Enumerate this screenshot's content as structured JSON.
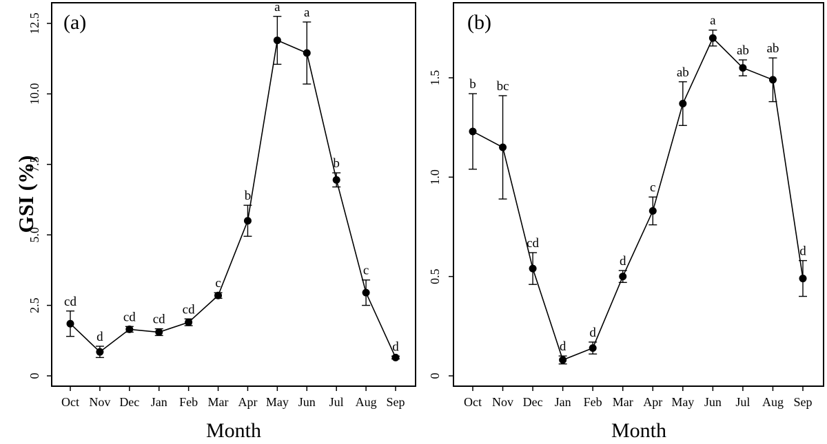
{
  "chart_data": [
    {
      "type": "line",
      "panel_label": "(a)",
      "xlabel": "Month",
      "ylabel": "GSI (%)",
      "categories": [
        "Oct",
        "Nov",
        "Dec",
        "Jan",
        "Feb",
        "Mar",
        "Apr",
        "May",
        "Jun",
        "Jul",
        "Aug",
        "Sep"
      ],
      "values": [
        1.85,
        0.85,
        1.65,
        1.55,
        1.9,
        2.85,
        5.5,
        11.9,
        11.45,
        6.95,
        2.95,
        0.65
      ],
      "error": [
        0.45,
        0.2,
        0.1,
        0.12,
        0.12,
        0.1,
        0.55,
        0.85,
        1.1,
        0.25,
        0.45,
        0.05
      ],
      "significance": [
        "cd",
        "d",
        "cd",
        "cd",
        "cd",
        "c",
        "b",
        "a",
        "a",
        "b",
        "c",
        "d"
      ],
      "ylim": [
        0,
        12.5
      ],
      "yticks": [
        "0",
        "2.5",
        "5.0",
        "7.5",
        "10.0",
        "12.5"
      ],
      "grid": false
    },
    {
      "type": "line",
      "panel_label": "(b)",
      "xlabel": "Month",
      "ylabel": "",
      "categories": [
        "Oct",
        "Nov",
        "Dec",
        "Jan",
        "Feb",
        "Mar",
        "Apr",
        "May",
        "Jun",
        "Jul",
        "Aug",
        "Sep"
      ],
      "values": [
        1.23,
        1.15,
        0.54,
        0.08,
        0.14,
        0.5,
        0.83,
        1.37,
        1.7,
        1.55,
        1.49,
        0.49
      ],
      "error": [
        0.19,
        0.26,
        0.08,
        0.02,
        0.03,
        0.03,
        0.07,
        0.11,
        0.04,
        0.04,
        0.11,
        0.09
      ],
      "significance": [
        "b",
        "bc",
        "cd",
        "d",
        "d",
        "d",
        "c",
        "ab",
        "a",
        "ab",
        "ab",
        "d"
      ],
      "ylim": [
        0,
        1.5
      ],
      "yticks": [
        "0",
        "0.5",
        "1.0",
        "1.5"
      ],
      "grid": false
    }
  ]
}
